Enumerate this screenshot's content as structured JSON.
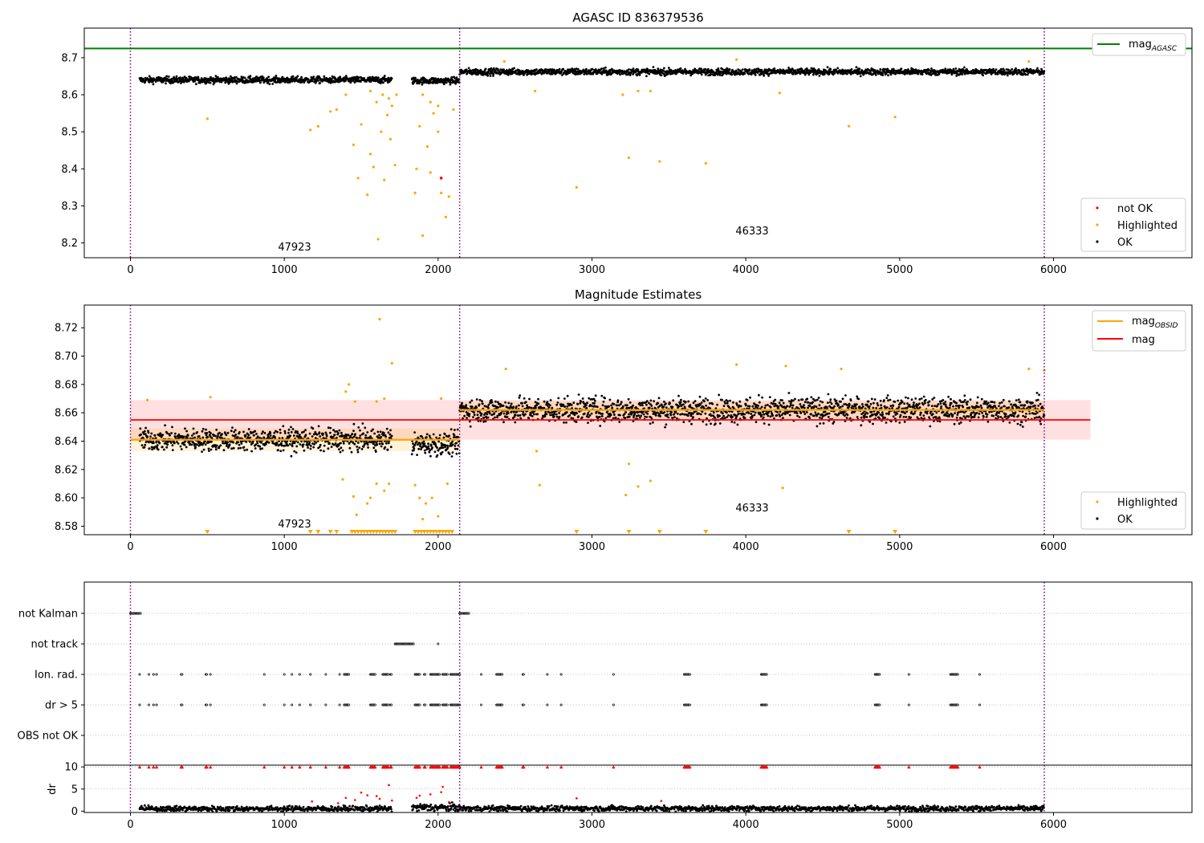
{
  "colors": {
    "ok": "#000000",
    "highlighted": "#ffa500",
    "not_ok": "#ff0000",
    "agasc_line": "#008000",
    "obsid_line": "#ffa500",
    "mag_line": "#ff0000",
    "boundary": "#800080"
  },
  "chart_data": [
    {
      "type": "scatter",
      "title": "AGASC ID 836379536",
      "xlim": [
        -300,
        6900
      ],
      "ylim": [
        8.16,
        8.78
      ],
      "x_ticks": [
        0,
        1000,
        2000,
        3000,
        4000,
        5000,
        6000
      ],
      "x_tick_labels": [
        "0",
        "1000",
        "2000",
        "3000",
        "4000",
        "5000",
        "6000"
      ],
      "y_ticks": [
        8.2,
        8.3,
        8.4,
        8.5,
        8.6,
        8.7
      ],
      "y_tick_labels": [
        "8.2",
        "8.3",
        "8.4",
        "8.5",
        "8.6",
        "8.7"
      ],
      "mag_agasc": 8.725,
      "obsid_boundaries": [
        0,
        2140,
        5940
      ],
      "annotations": [
        {
          "text": "47923",
          "x": 1070,
          "y": 8.18
        },
        {
          "text": "46333",
          "x": 4040,
          "y": 8.225
        }
      ],
      "legend_top": {
        "position": "top-right",
        "entries": [
          {
            "label": "mag",
            "sub": "AGASC"
          }
        ]
      },
      "legend_bottom": {
        "position": "lower-right",
        "entries": [
          {
            "label": "not OK"
          },
          {
            "label": "Highlighted"
          },
          {
            "label": "OK"
          }
        ]
      },
      "series": [
        {
          "name": "OK",
          "segments": [
            {
              "x0": 60,
              "x1": 1700,
              "level": 8.64,
              "spread": 0.008
            },
            {
              "x0": 1830,
              "x1": 2140,
              "level": 8.638,
              "spread": 0.008
            },
            {
              "x0": 2140,
              "x1": 5940,
              "level": 8.662,
              "spread": 0.008
            }
          ]
        },
        {
          "name": "Highlighted",
          "points": [
            [
              500,
              8.535
            ],
            [
              1170,
              8.505
            ],
            [
              1220,
              8.515
            ],
            [
              1300,
              8.555
            ],
            [
              1340,
              8.56
            ],
            [
              1400,
              8.6
            ],
            [
              1450,
              8.465
            ],
            [
              1480,
              8.375
            ],
            [
              1500,
              8.52
            ],
            [
              1540,
              8.33
            ],
            [
              1560,
              8.44
            ],
            [
              1580,
              8.405
            ],
            [
              1610,
              8.21
            ],
            [
              1630,
              8.5
            ],
            [
              1650,
              8.37
            ],
            [
              1670,
              8.545
            ],
            [
              1690,
              8.48
            ],
            [
              1720,
              8.41
            ],
            [
              1560,
              8.61
            ],
            [
              1600,
              8.58
            ],
            [
              1640,
              8.6
            ],
            [
              1680,
              8.59
            ],
            [
              1700,
              8.57
            ],
            [
              1730,
              8.6
            ],
            [
              1850,
              8.335
            ],
            [
              1860,
              8.4
            ],
            [
              1880,
              8.515
            ],
            [
              1900,
              8.22
            ],
            [
              1930,
              8.46
            ],
            [
              1950,
              8.39
            ],
            [
              1970,
              8.55
            ],
            [
              2000,
              8.5
            ],
            [
              2020,
              8.335
            ],
            [
              2050,
              8.27
            ],
            [
              2070,
              8.325
            ],
            [
              1900,
              8.6
            ],
            [
              1950,
              8.58
            ],
            [
              2000,
              8.57
            ],
            [
              2100,
              8.56
            ],
            [
              2430,
              8.69
            ],
            [
              2630,
              8.61
            ],
            [
              2900,
              8.35
            ],
            [
              3200,
              8.6
            ],
            [
              3240,
              8.43
            ],
            [
              3300,
              8.61
            ],
            [
              3380,
              8.61
            ],
            [
              3440,
              8.42
            ],
            [
              3740,
              8.415
            ],
            [
              3940,
              8.695
            ],
            [
              4220,
              8.605
            ],
            [
              4670,
              8.515
            ],
            [
              4970,
              8.54
            ],
            [
              5840,
              8.69
            ]
          ]
        },
        {
          "name": "not OK",
          "points": [
            [
              2020,
              8.375
            ]
          ]
        }
      ]
    },
    {
      "type": "scatter",
      "title": "Magnitude Estimates",
      "xlim": [
        -300,
        6900
      ],
      "ylim": [
        8.574,
        8.736
      ],
      "x_ticks": [
        0,
        1000,
        2000,
        3000,
        4000,
        5000,
        6000
      ],
      "x_tick_labels": [
        "0",
        "1000",
        "2000",
        "3000",
        "4000",
        "5000",
        "6000"
      ],
      "y_ticks": [
        8.58,
        8.6,
        8.62,
        8.64,
        8.66,
        8.68,
        8.7,
        8.72
      ],
      "y_tick_labels": [
        "8.58",
        "8.60",
        "8.62",
        "8.64",
        "8.66",
        "8.68",
        "8.70",
        "8.72"
      ],
      "mag": 8.655,
      "mag_band": [
        8.641,
        8.669
      ],
      "mag_band_xrange": [
        0,
        6240
      ],
      "mag_obsid": [
        {
          "x0": 0,
          "x1": 2140,
          "value": 8.641,
          "band": [
            8.633,
            8.649
          ]
        },
        {
          "x0": 2140,
          "x1": 5940,
          "value": 8.662,
          "band": [
            8.656,
            8.668
          ]
        }
      ],
      "obsid_boundaries": [
        0,
        2140,
        5940
      ],
      "annotations": [
        {
          "text": "47923",
          "x": 1070,
          "y": 8.579
        },
        {
          "text": "46333",
          "x": 4040,
          "y": 8.593
        }
      ],
      "legend_top": {
        "position": "top-right",
        "entries": [
          {
            "label": "mag",
            "sub": "OBSID"
          },
          {
            "label": "mag"
          }
        ]
      },
      "legend_bottom": {
        "position": "lower-right",
        "entries": [
          {
            "label": "Highlighted"
          },
          {
            "label": "OK"
          }
        ]
      },
      "clipped_low_x": [
        500,
        1170,
        1220,
        1300,
        1340,
        1440,
        1460,
        1480,
        1500,
        1520,
        1540,
        1560,
        1580,
        1600,
        1620,
        1640,
        1660,
        1680,
        1700,
        1720,
        1850,
        1870,
        1890,
        1910,
        1930,
        1950,
        1970,
        1990,
        2010,
        2030,
        2050,
        2070,
        2090,
        2900,
        3240,
        3440,
        3740,
        4670,
        4970
      ],
      "highlighted_points": [
        [
          110,
          8.669
        ],
        [
          520,
          8.671
        ],
        [
          1400,
          8.675
        ],
        [
          1420,
          8.68
        ],
        [
          1460,
          8.668
        ],
        [
          1600,
          8.668
        ],
        [
          1620,
          8.726
        ],
        [
          1650,
          8.67
        ],
        [
          1700,
          8.695
        ],
        [
          2020,
          8.67
        ],
        [
          2440,
          8.691
        ],
        [
          2640,
          8.633
        ],
        [
          2660,
          8.609
        ],
        [
          3220,
          8.602
        ],
        [
          3240,
          8.624
        ],
        [
          3300,
          8.608
        ],
        [
          3380,
          8.612
        ],
        [
          3940,
          8.694
        ],
        [
          4240,
          8.607
        ],
        [
          4260,
          8.693
        ],
        [
          4620,
          8.691
        ],
        [
          5840,
          8.691
        ],
        [
          5940,
          8.69
        ],
        [
          1380,
          8.613
        ],
        [
          1450,
          8.601
        ],
        [
          1540,
          8.596
        ],
        [
          1560,
          8.6
        ],
        [
          1600,
          8.61
        ],
        [
          1650,
          8.605
        ],
        [
          1680,
          8.61
        ],
        [
          1850,
          8.609
        ],
        [
          1880,
          8.6
        ],
        [
          1920,
          8.596
        ],
        [
          1960,
          8.6
        ],
        [
          2000,
          8.587
        ],
        [
          2060,
          8.61
        ],
        [
          1470,
          8.588
        ],
        [
          1900,
          8.585
        ]
      ],
      "series": [
        {
          "name": "OK",
          "segments": [
            {
              "x0": 60,
              "x1": 1700,
              "level": 8.641,
              "spread": 0.007
            },
            {
              "x0": 1830,
              "x1": 2140,
              "level": 8.638,
              "spread": 0.007
            },
            {
              "x0": 2140,
              "x1": 5940,
              "level": 8.662,
              "spread": 0.008
            }
          ]
        }
      ]
    },
    {
      "type": "scatter",
      "title": "",
      "xlim": [
        -300,
        6900
      ],
      "category_labels": [
        "not Kalman",
        "not track",
        "Ion. rad.",
        "dr > 5",
        "OBS not OK"
      ],
      "flag_ranges": {
        "not Kalman": [
          [
            0,
            70
          ],
          [
            2140,
            2200
          ]
        ],
        "not track": [
          [
            1720,
            1840
          ],
          [
            2000,
            2000
          ]
        ],
        "Ion. rad.": [
          [
            60,
            60
          ],
          [
            120,
            120
          ],
          [
            150,
            150
          ],
          [
            170,
            170
          ],
          [
            330,
            340
          ],
          [
            490,
            500
          ],
          [
            520,
            520
          ],
          [
            870,
            870
          ],
          [
            1000,
            1000
          ],
          [
            1050,
            1050
          ],
          [
            1100,
            1100
          ],
          [
            1170,
            1170
          ],
          [
            1270,
            1270
          ],
          [
            1360,
            1360
          ],
          [
            1390,
            1420
          ],
          [
            1560,
            1590
          ],
          [
            1640,
            1680
          ],
          [
            1690,
            1700
          ],
          [
            1850,
            1880
          ],
          [
            1910,
            1920
          ],
          [
            1950,
            2010
          ],
          [
            2030,
            2060
          ],
          [
            2080,
            2140
          ],
          [
            2280,
            2280
          ],
          [
            2380,
            2420
          ],
          [
            2550,
            2560
          ],
          [
            2710,
            2710
          ],
          [
            2800,
            2800
          ],
          [
            3140,
            3140
          ],
          [
            3600,
            3640
          ],
          [
            4100,
            4140
          ],
          [
            4840,
            4870
          ],
          [
            5060,
            5060
          ],
          [
            5330,
            5380
          ],
          [
            5520,
            5520
          ]
        ],
        "dr > 5": [
          [
            60,
            60
          ],
          [
            120,
            120
          ],
          [
            150,
            150
          ],
          [
            170,
            170
          ],
          [
            330,
            340
          ],
          [
            490,
            500
          ],
          [
            520,
            520
          ],
          [
            870,
            870
          ],
          [
            1000,
            1000
          ],
          [
            1050,
            1050
          ],
          [
            1100,
            1100
          ],
          [
            1170,
            1170
          ],
          [
            1270,
            1270
          ],
          [
            1360,
            1360
          ],
          [
            1390,
            1420
          ],
          [
            1560,
            1590
          ],
          [
            1640,
            1680
          ],
          [
            1690,
            1700
          ],
          [
            1850,
            1880
          ],
          [
            1910,
            1920
          ],
          [
            1950,
            2010
          ],
          [
            2030,
            2060
          ],
          [
            2080,
            2140
          ],
          [
            2280,
            2280
          ],
          [
            2380,
            2420
          ],
          [
            2550,
            2560
          ],
          [
            2710,
            2710
          ],
          [
            2800,
            2800
          ],
          [
            3140,
            3140
          ],
          [
            3600,
            3640
          ],
          [
            4100,
            4140
          ],
          [
            4840,
            4870
          ],
          [
            5060,
            5060
          ],
          [
            5330,
            5380
          ],
          [
            5520,
            5520
          ]
        ],
        "OBS not OK": []
      },
      "obsid_boundaries": [
        0,
        2140,
        5940
      ]
    },
    {
      "type": "scatter",
      "ylabel": "dr",
      "xlim": [
        -300,
        6900
      ],
      "ylim": [
        -0.3,
        10.4
      ],
      "y_ticks": [
        0,
        5,
        10
      ],
      "y_tick_labels": [
        "0",
        "5",
        "10"
      ],
      "x_ticks": [
        0,
        1000,
        2000,
        3000,
        4000,
        5000,
        6000
      ],
      "x_tick_labels": [
        "0",
        "1000",
        "2000",
        "3000",
        "4000",
        "5000",
        "6000"
      ],
      "cap_value": 10,
      "obsid_boundaries": [
        0,
        2140,
        5940
      ],
      "high_dr_points": [
        [
          1180,
          2.2
        ],
        [
          1350,
          1.8
        ],
        [
          1400,
          3.0
        ],
        [
          1460,
          2.5
        ],
        [
          1500,
          4.2
        ],
        [
          1540,
          3.6
        ],
        [
          1600,
          3.4
        ],
        [
          1620,
          2.8
        ],
        [
          1680,
          5.9
        ],
        [
          1700,
          2.4
        ],
        [
          1860,
          3.0
        ],
        [
          1880,
          3.5
        ],
        [
          1950,
          3.8
        ],
        [
          2020,
          4.3
        ],
        [
          2030,
          5.5
        ],
        [
          2070,
          2.0
        ],
        [
          2900,
          2.9
        ],
        [
          3450,
          2.3
        ]
      ],
      "series": [
        {
          "name": "dr",
          "segments": [
            {
              "x0": 60,
              "x1": 1700,
              "level": 0.55,
              "spread": 0.55
            },
            {
              "x0": 1830,
              "x1": 2140,
              "level": 0.8,
              "spread": 0.8
            },
            {
              "x0": 2140,
              "x1": 5940,
              "level": 0.6,
              "spread": 0.55
            }
          ]
        }
      ]
    }
  ]
}
